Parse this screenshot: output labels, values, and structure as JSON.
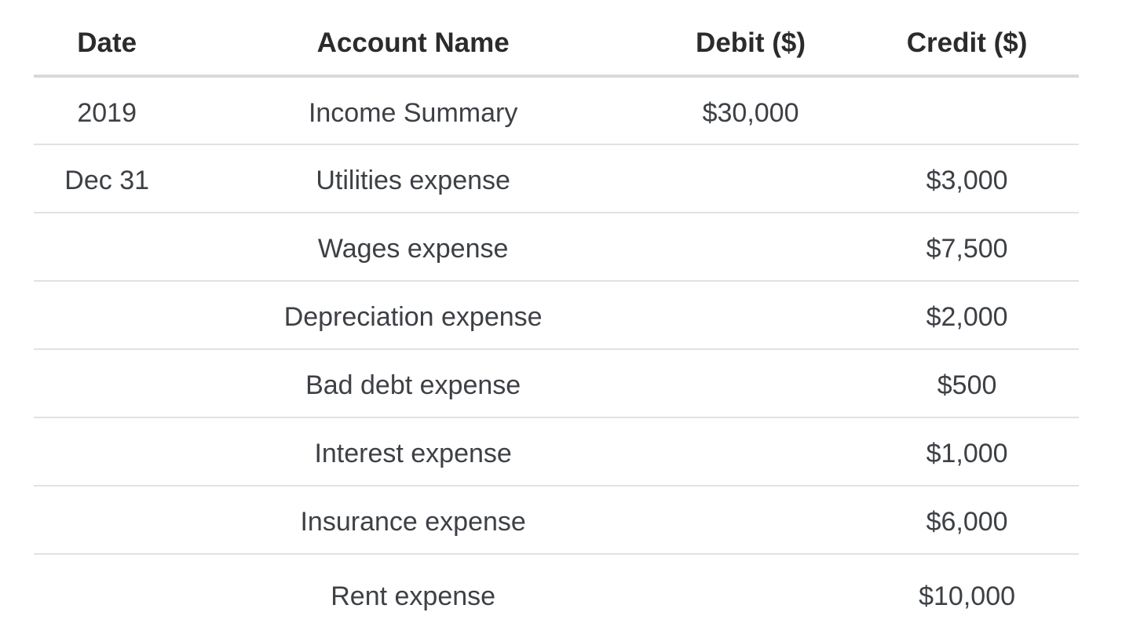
{
  "table": {
    "columns": [
      {
        "label": "Date"
      },
      {
        "label": "Account Name"
      },
      {
        "label": "Debit ($)"
      },
      {
        "label": "Credit ($)"
      }
    ],
    "rows": [
      {
        "date": "2019",
        "account": "Income Summary",
        "debit": "$30,000",
        "credit": ""
      },
      {
        "date": "Dec 31",
        "account": "Utilities expense",
        "debit": "",
        "credit": "$3,000"
      },
      {
        "date": "",
        "account": "Wages expense",
        "debit": "",
        "credit": "$7,500"
      },
      {
        "date": "",
        "account": "Depreciation expense",
        "debit": "",
        "credit": "$2,000"
      },
      {
        "date": "",
        "account": "Bad debt expense",
        "debit": "",
        "credit": "$500"
      },
      {
        "date": "",
        "account": "Interest expense",
        "debit": "",
        "credit": "$1,000"
      },
      {
        "date": "",
        "account": "Insurance expense",
        "debit": "",
        "credit": "$6,000"
      },
      {
        "date": "",
        "account": "Rent expense",
        "debit": "",
        "credit": "$10,000"
      }
    ],
    "colors": {
      "background": "#ffffff",
      "header_text": "#2b2b2b",
      "body_text": "#3d4045",
      "header_rule": "#d9d9d9",
      "row_rule": "#e2e2e2"
    }
  }
}
